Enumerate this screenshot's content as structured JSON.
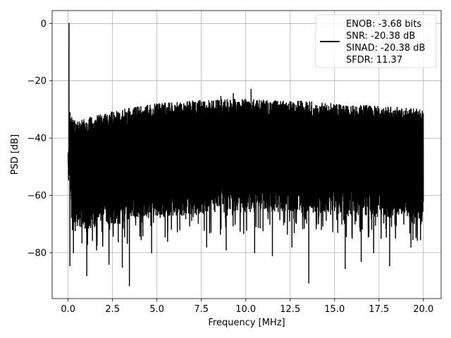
{
  "chart_data": {
    "type": "line",
    "title": "",
    "xlabel": "Frequency [MHz]",
    "ylabel": "PSD [dB]",
    "xlim": [
      -0.9,
      21.0
    ],
    "ylim": [
      -96,
      4.5
    ],
    "xticks": [
      0.0,
      2.5,
      5.0,
      7.5,
      10.0,
      12.5,
      15.0,
      17.5,
      20.0
    ],
    "xtick_labels": [
      "0.0",
      "2.5",
      "5.0",
      "7.5",
      "10.0",
      "12.5",
      "15.0",
      "17.5",
      "20.0"
    ],
    "yticks": [
      0,
      -20,
      -40,
      -60,
      -80
    ],
    "ytick_labels": [
      "0",
      "−20",
      "−40",
      "−60",
      "−80"
    ],
    "grid": true,
    "legend_position": "top-right",
    "legend_entries": [
      "ENOB: -3.68 bits",
      "SNR: -20.38 dB",
      "SINAD: -20.38 dB",
      "SFDR: 11.37"
    ],
    "series": [
      {
        "color": "#000000",
        "x_range": [
          0.0,
          20.0
        ],
        "peak": {
          "x": 0.05,
          "y": 0.0
        },
        "upper_envelope": {
          "x": [
            0.0,
            0.1,
            0.3,
            1.0,
            2.0,
            3.0,
            4.0,
            5.0,
            6.0,
            7.0,
            8.0,
            9.0,
            10.0,
            11.0,
            12.0,
            13.0,
            14.0,
            15.0,
            16.0,
            17.0,
            18.0,
            19.0,
            20.0
          ],
          "y": [
            -45,
            -30,
            -34,
            -33,
            -31.5,
            -30,
            -29,
            -28,
            -27.5,
            -27,
            -26.5,
            -26.5,
            -26.5,
            -26.5,
            -27,
            -27,
            -27.5,
            -28,
            -28.5,
            -28.5,
            -29,
            -29.5,
            -30
          ]
        },
        "lower_envelope": {
          "x": [
            0.0,
            0.1,
            0.3,
            1.0,
            2.0,
            3.0,
            4.0,
            5.0,
            6.0,
            7.0,
            8.0,
            9.0,
            10.0,
            11.0,
            12.0,
            13.0,
            14.0,
            15.0,
            16.0,
            17.0,
            18.0,
            19.0,
            20.0
          ],
          "y": [
            -55,
            -62,
            -70,
            -72,
            -70,
            -70,
            -68,
            -68,
            -67,
            -67,
            -66,
            -66,
            -66,
            -66,
            -66,
            -66,
            -66,
            -66,
            -67,
            -67,
            -68,
            -68,
            -68
          ]
        },
        "notable_dips": [
          {
            "x": 3.45,
            "y": -91.5
          },
          {
            "x": 13.55,
            "y": -90.5
          },
          {
            "x": 1.05,
            "y": -88
          },
          {
            "x": 0.1,
            "y": -84.5
          },
          {
            "x": 15.6,
            "y": -85.5
          },
          {
            "x": 2.3,
            "y": -84
          },
          {
            "x": 3.05,
            "y": -85
          },
          {
            "x": 16.5,
            "y": -83
          },
          {
            "x": 18.1,
            "y": -84.5
          },
          {
            "x": 17.2,
            "y": -80
          },
          {
            "x": 11.5,
            "y": -81
          },
          {
            "x": 10.5,
            "y": -80
          },
          {
            "x": 7.8,
            "y": -78
          },
          {
            "x": 4.7,
            "y": -80
          },
          {
            "x": 19.3,
            "y": -78
          },
          {
            "x": 0.3,
            "y": -80
          },
          {
            "x": 1.6,
            "y": -79
          },
          {
            "x": 5.6,
            "y": -76
          },
          {
            "x": 8.9,
            "y": -79
          },
          {
            "x": 12.6,
            "y": -78
          }
        ],
        "notable_peaks": [
          {
            "x": 10.3,
            "y": -23
          },
          {
            "x": 9.3,
            "y": -24.5
          },
          {
            "x": 8.6,
            "y": -25.5
          },
          {
            "x": 0.05,
            "y": -26
          }
        ]
      }
    ]
  }
}
